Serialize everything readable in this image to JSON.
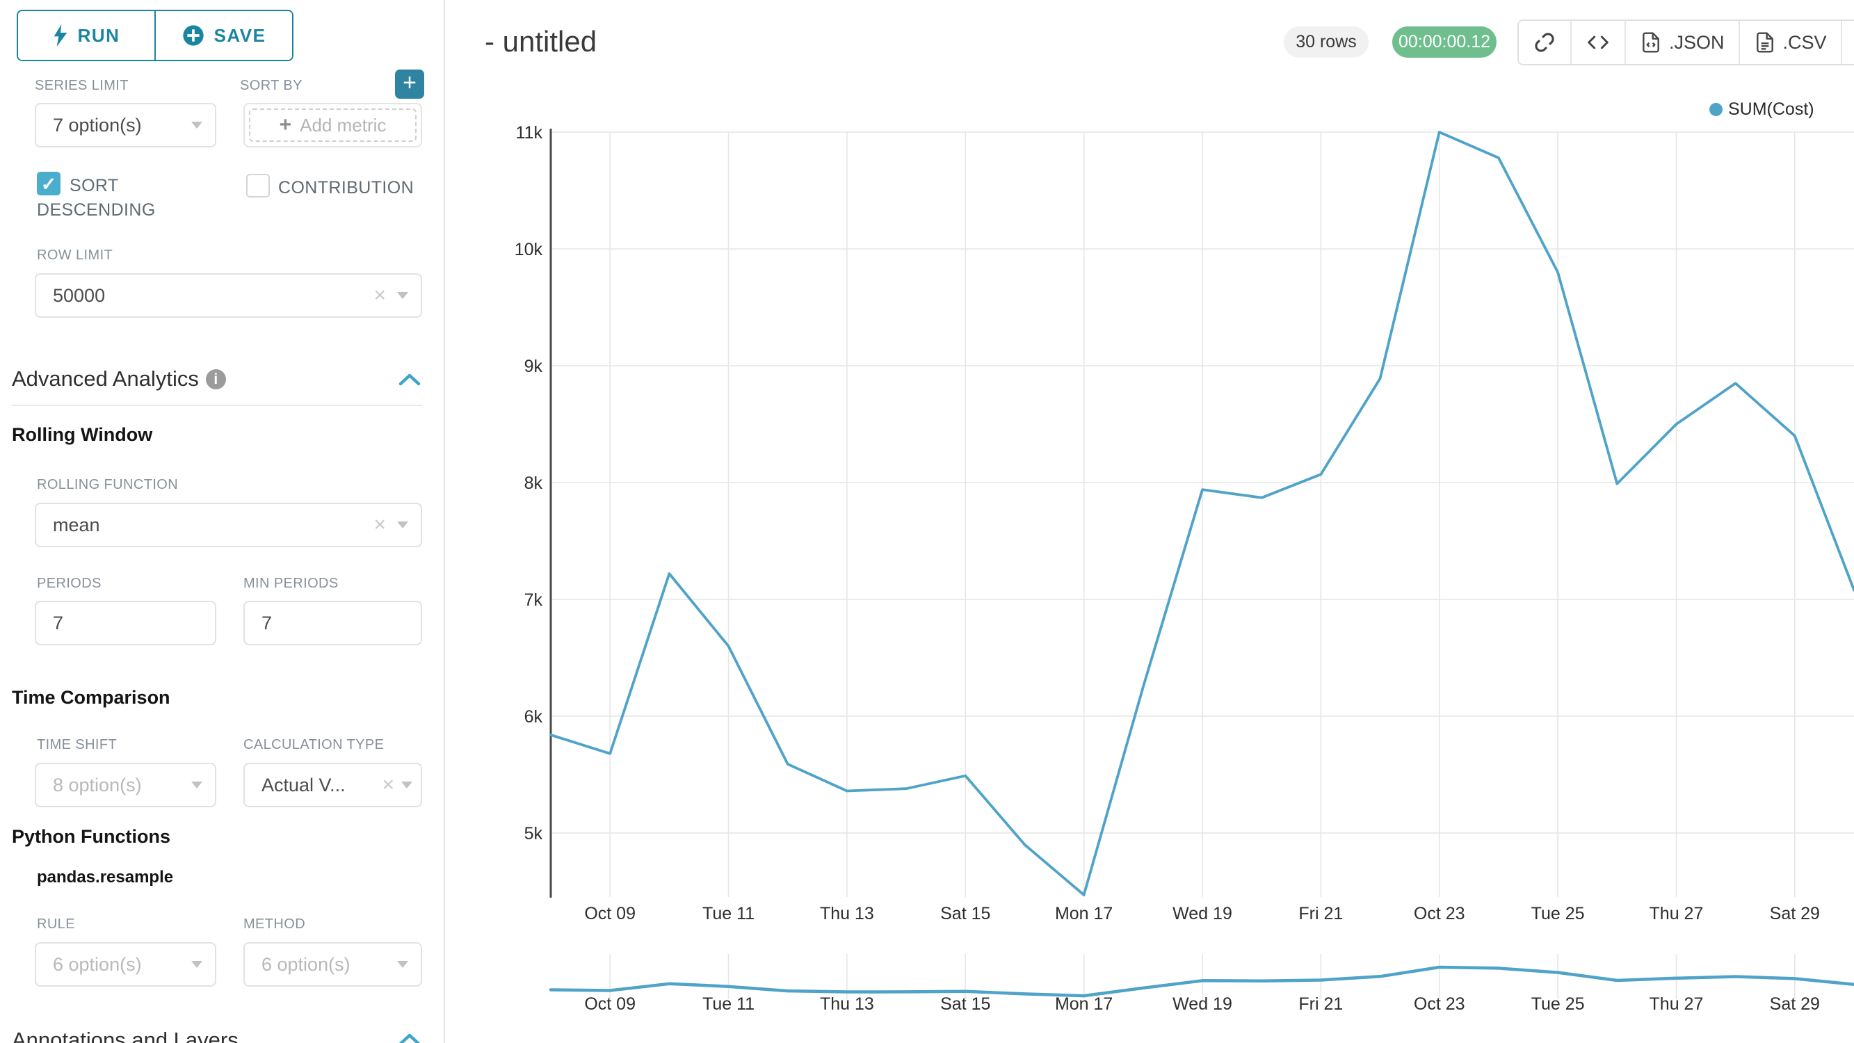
{
  "colors": {
    "accent_teal": "#1a85a0",
    "plus_button": "#2e84a1",
    "checkbox_blue": "#4badcd",
    "timer_green": "#6fbe8d",
    "line_blue": "#4FA3C9",
    "grid": "#e6e6e6",
    "axis": "#4a4a4a",
    "axis_label": "#2e2e2e"
  },
  "toolbar": {
    "run_label": "RUN",
    "save_label": "SAVE"
  },
  "controls": {
    "series_limit": {
      "label": "SERIES LIMIT",
      "value": "7 option(s)"
    },
    "sort_by": {
      "label": "SORT BY",
      "placeholder": "Add metric",
      "plus": "+"
    },
    "sort_descending": {
      "label": "SORT DESCENDING",
      "line1": "SORT",
      "line2": "DESCENDING",
      "checked": true,
      "checkmark": "✓"
    },
    "contribution": {
      "label": "CONTRIBUTION",
      "checked": false
    },
    "row_limit": {
      "label": "ROW LIMIT",
      "value": "50000"
    }
  },
  "sections": {
    "advanced_analytics": {
      "title": "Advanced Analytics",
      "info": "i"
    },
    "rolling_window": {
      "title": "Rolling Window",
      "rolling_function": {
        "label": "ROLLING FUNCTION",
        "value": "mean"
      },
      "periods": {
        "label": "PERIODS",
        "value": "7"
      },
      "min_periods": {
        "label": "MIN PERIODS",
        "value": "7"
      }
    },
    "time_comparison": {
      "title": "Time Comparison",
      "time_shift": {
        "label": "TIME SHIFT",
        "placeholder": "8 option(s)"
      },
      "calculation_type": {
        "label": "CALCULATION TYPE",
        "value": "Actual V..."
      }
    },
    "python_functions": {
      "title": "Python Functions",
      "subtitle": "pandas.resample",
      "rule": {
        "label": "RULE",
        "placeholder": "6 option(s)"
      },
      "method": {
        "label": "METHOD",
        "placeholder": "6 option(s)"
      }
    },
    "annotations": {
      "title": "Annotations and Layers"
    }
  },
  "header": {
    "title": "- untitled",
    "rows_badge": "30 rows",
    "timer_badge": "00:00:00.12",
    "json_label": ".JSON",
    "csv_label": ".CSV"
  },
  "chart_data": {
    "type": "line",
    "title": "- untitled",
    "legend": [
      {
        "name": "SUM(Cost)",
        "color": "#4FA3C9"
      }
    ],
    "x": [
      "Oct 08",
      "Oct 09",
      "Oct 10",
      "Oct 11",
      "Oct 12",
      "Oct 13",
      "Oct 14",
      "Oct 15",
      "Oct 16",
      "Oct 17",
      "Oct 18",
      "Oct 19",
      "Oct 20",
      "Oct 21",
      "Oct 22",
      "Oct 23",
      "Oct 24",
      "Oct 25",
      "Oct 26",
      "Oct 27",
      "Oct 28",
      "Oct 29",
      "Oct 30"
    ],
    "series": [
      {
        "name": "SUM(Cost)",
        "values": [
          5840,
          5680,
          7220,
          6600,
          5590,
          5360,
          5380,
          5490,
          4900,
          4470,
          6250,
          7940,
          7870,
          8070,
          8890,
          11000,
          10780,
          9800,
          7990,
          8500,
          8850,
          8400,
          7080
        ]
      }
    ],
    "x_tick_indices": [
      1,
      3,
      5,
      7,
      9,
      11,
      13,
      15,
      17,
      19,
      21
    ],
    "x_tick_labels": [
      "Oct 09",
      "Tue 11",
      "Thu 13",
      "Sat 15",
      "Mon 17",
      "Wed 19",
      "Fri 21",
      "Oct 23",
      "Tue 25",
      "Thu 27",
      "Sat 29"
    ],
    "y_ticks": [
      5000,
      6000,
      7000,
      8000,
      9000,
      10000,
      11000
    ],
    "y_tick_labels": [
      "5k",
      "6k",
      "7k",
      "8k",
      "9k",
      "10k",
      "11k"
    ],
    "ylim": [
      4300,
      11100
    ],
    "grid": true,
    "legend_position": "top-right",
    "has_mini_preview": true
  }
}
